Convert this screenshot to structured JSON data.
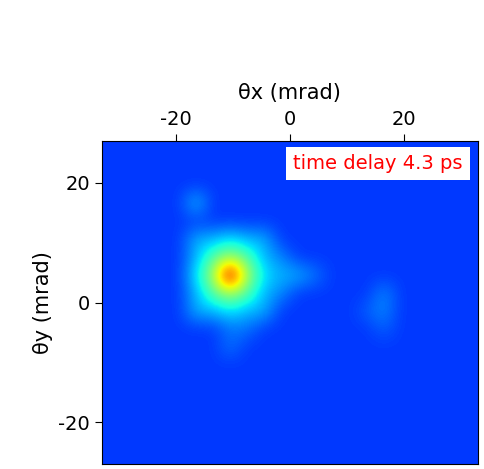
{
  "chart_data": {
    "type": "heatmap",
    "x_label": "θx (mrad)",
    "y_label": "θy (mrad)",
    "annotation": "time delay 4.3 ps",
    "xlim": [
      -33,
      33
    ],
    "ylim": [
      -27,
      27
    ],
    "xticks": [
      -20,
      0,
      20
    ],
    "yticks": [
      -20,
      0,
      20
    ],
    "value_range": [
      0,
      1
    ],
    "x": [
      -31.5,
      -28.5,
      -25.5,
      -22.5,
      -19.5,
      -16.5,
      -13.5,
      -10.5,
      -7.5,
      -4.5,
      -1.5,
      1.5,
      4.5,
      7.5,
      10.5,
      13.5,
      16.5,
      19.5,
      22.5,
      25.5,
      28.5,
      31.5
    ],
    "y": [
      -25.5,
      -22.5,
      -19.5,
      -16.5,
      -13.5,
      -10.5,
      -7.5,
      -4.5,
      -1.5,
      1.5,
      4.5,
      7.5,
      10.5,
      13.5,
      16.5,
      19.5,
      22.5,
      25.5
    ],
    "cells": [
      [
        0.18,
        0.18,
        0.18,
        0.18,
        0.18,
        0.18,
        0.18,
        0.18,
        0.18,
        0.18,
        0.18,
        0.18,
        0.18,
        0.18,
        0.18,
        0.18,
        0.18,
        0.18,
        0.18,
        0.18,
        0.18,
        0.18
      ],
      [
        0.18,
        0.18,
        0.18,
        0.18,
        0.18,
        0.18,
        0.18,
        0.18,
        0.18,
        0.18,
        0.18,
        0.18,
        0.18,
        0.18,
        0.18,
        0.18,
        0.18,
        0.18,
        0.18,
        0.18,
        0.18,
        0.18
      ],
      [
        0.18,
        0.18,
        0.18,
        0.18,
        0.18,
        0.18,
        0.18,
        0.18,
        0.18,
        0.18,
        0.18,
        0.18,
        0.18,
        0.18,
        0.18,
        0.18,
        0.18,
        0.18,
        0.18,
        0.18,
        0.18,
        0.18
      ],
      [
        0.18,
        0.18,
        0.18,
        0.18,
        0.18,
        0.18,
        0.18,
        0.18,
        0.18,
        0.18,
        0.18,
        0.18,
        0.18,
        0.18,
        0.18,
        0.18,
        0.18,
        0.18,
        0.18,
        0.18,
        0.18,
        0.18
      ],
      [
        0.18,
        0.18,
        0.18,
        0.18,
        0.18,
        0.18,
        0.18,
        0.18,
        0.18,
        0.18,
        0.18,
        0.18,
        0.18,
        0.18,
        0.18,
        0.18,
        0.18,
        0.18,
        0.18,
        0.18,
        0.18,
        0.18
      ],
      [
        0.18,
        0.18,
        0.18,
        0.18,
        0.18,
        0.18,
        0.18,
        0.18,
        0.18,
        0.18,
        0.18,
        0.18,
        0.18,
        0.18,
        0.18,
        0.18,
        0.18,
        0.18,
        0.18,
        0.18,
        0.18,
        0.18
      ],
      [
        0.18,
        0.18,
        0.18,
        0.18,
        0.18,
        0.18,
        0.18,
        0.24,
        0.18,
        0.18,
        0.18,
        0.18,
        0.18,
        0.18,
        0.18,
        0.18,
        0.18,
        0.18,
        0.18,
        0.18,
        0.18,
        0.18
      ],
      [
        0.18,
        0.18,
        0.18,
        0.18,
        0.18,
        0.18,
        0.18,
        0.24,
        0.24,
        0.18,
        0.18,
        0.18,
        0.18,
        0.18,
        0.18,
        0.18,
        0.22,
        0.18,
        0.18,
        0.18,
        0.18,
        0.18
      ],
      [
        0.18,
        0.18,
        0.18,
        0.18,
        0.18,
        0.3,
        0.3,
        0.35,
        0.3,
        0.3,
        0.18,
        0.18,
        0.18,
        0.18,
        0.18,
        0.22,
        0.26,
        0.18,
        0.18,
        0.18,
        0.18,
        0.18
      ],
      [
        0.18,
        0.18,
        0.18,
        0.18,
        0.18,
        0.3,
        0.45,
        0.55,
        0.45,
        0.3,
        0.26,
        0.18,
        0.18,
        0.18,
        0.18,
        0.18,
        0.26,
        0.18,
        0.18,
        0.18,
        0.18,
        0.18
      ],
      [
        0.18,
        0.18,
        0.18,
        0.18,
        0.18,
        0.35,
        0.55,
        1.0,
        0.55,
        0.35,
        0.3,
        0.3,
        0.24,
        0.18,
        0.18,
        0.18,
        0.18,
        0.18,
        0.18,
        0.18,
        0.18,
        0.18
      ],
      [
        0.18,
        0.18,
        0.18,
        0.18,
        0.18,
        0.3,
        0.45,
        0.55,
        0.45,
        0.3,
        0.26,
        0.18,
        0.18,
        0.18,
        0.18,
        0.18,
        0.18,
        0.18,
        0.18,
        0.18,
        0.18,
        0.18
      ],
      [
        0.18,
        0.18,
        0.18,
        0.18,
        0.18,
        0.3,
        0.3,
        0.35,
        0.3,
        0.3,
        0.18,
        0.18,
        0.18,
        0.18,
        0.18,
        0.18,
        0.18,
        0.18,
        0.18,
        0.18,
        0.18,
        0.18
      ],
      [
        0.18,
        0.18,
        0.18,
        0.18,
        0.18,
        0.18,
        0.18,
        0.18,
        0.18,
        0.18,
        0.18,
        0.18,
        0.18,
        0.18,
        0.18,
        0.18,
        0.18,
        0.18,
        0.18,
        0.18,
        0.18,
        0.18
      ],
      [
        0.18,
        0.18,
        0.18,
        0.18,
        0.18,
        0.32,
        0.18,
        0.18,
        0.18,
        0.18,
        0.18,
        0.18,
        0.18,
        0.18,
        0.18,
        0.18,
        0.18,
        0.18,
        0.18,
        0.18,
        0.18,
        0.18
      ],
      [
        0.18,
        0.18,
        0.18,
        0.18,
        0.18,
        0.18,
        0.18,
        0.18,
        0.18,
        0.18,
        0.18,
        0.18,
        0.18,
        0.18,
        0.18,
        0.18,
        0.18,
        0.18,
        0.18,
        0.18,
        0.18,
        0.18
      ],
      [
        0.18,
        0.18,
        0.18,
        0.18,
        0.18,
        0.18,
        0.18,
        0.18,
        0.18,
        0.18,
        0.18,
        0.18,
        0.18,
        0.18,
        0.18,
        0.18,
        0.18,
        0.18,
        0.18,
        0.18,
        0.18,
        0.18
      ],
      [
        0.18,
        0.18,
        0.18,
        0.18,
        0.18,
        0.18,
        0.18,
        0.18,
        0.18,
        0.18,
        0.18,
        0.18,
        0.18,
        0.18,
        0.18,
        0.18,
        0.18,
        0.18,
        0.18,
        0.18,
        0.18,
        0.18
      ]
    ]
  }
}
